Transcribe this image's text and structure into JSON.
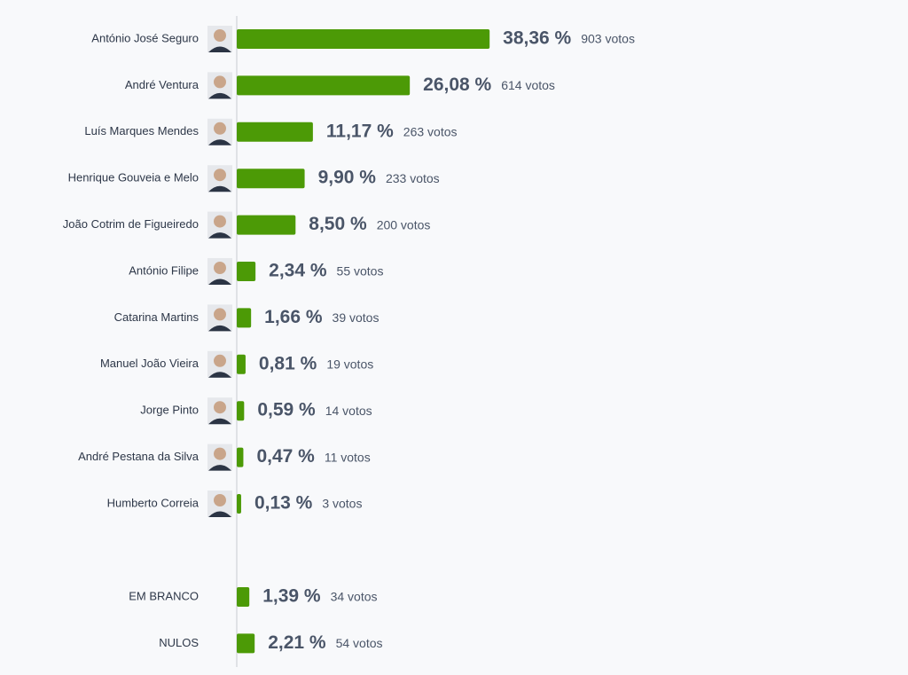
{
  "chart_data": [
    {
      "type": "bar",
      "color": "#4c9a06",
      "categories": [
        "António José Seguro",
        "André Ventura",
        "Luís Marques Mendes",
        "Henrique Gouveia e Melo",
        "João Cotrim de Figueiredo",
        "António Filipe",
        "Catarina Martins",
        "Manuel João Vieira",
        "Jorge Pinto",
        "André Pestana da Silva",
        "Humberto Correia"
      ],
      "values": [
        38.36,
        26.08,
        11.17,
        9.9,
        8.5,
        2.34,
        1.66,
        0.81,
        0.59,
        0.47,
        0.13
      ],
      "value_labels": [
        "38,36 %",
        "26,08 %",
        "11,17 %",
        "9,90 %",
        "8,50 %",
        "2,34 %",
        "1,66 %",
        "0,81 %",
        "0,59 %",
        "0,47 %",
        "0,13 %"
      ],
      "vote_labels": [
        "903 votos",
        "614 votos",
        "263 votos",
        "233 votos",
        "200 votos",
        "55 votos",
        "39 votos",
        "19 votos",
        "14 votos",
        "11 votos",
        "3 votos"
      ]
    },
    {
      "type": "bar",
      "color": "#4c9a06",
      "categories": [
        "EM BRANCO",
        "NULOS"
      ],
      "values": [
        1.39,
        2.21
      ],
      "value_labels": [
        "1,39 %",
        "2,21 %"
      ],
      "vote_labels": [
        "34 votos",
        "54 votos"
      ]
    }
  ]
}
